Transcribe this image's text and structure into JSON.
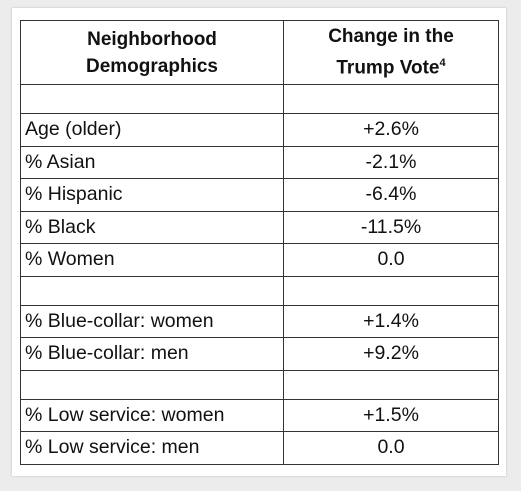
{
  "table": {
    "header": {
      "col1": "Neighborhood Demographics",
      "col2": "Change in the Trump Vote",
      "col2_footnote": "4"
    },
    "groups": [
      [
        [
          "Age (older)",
          "+2.6%"
        ],
        [
          "% Asian",
          "-2.1%"
        ],
        [
          "% Hispanic",
          "-6.4%"
        ],
        [
          "% Black",
          "-11.5%"
        ],
        [
          "% Women",
          "0.0"
        ]
      ],
      [
        [
          "% Blue-collar: women",
          "+1.4%"
        ],
        [
          "% Blue-collar: men",
          "+9.2%"
        ]
      ],
      [
        [
          "% Low service: women",
          "+1.5%"
        ],
        [
          "% Low service: men",
          "0.0"
        ]
      ]
    ]
  }
}
